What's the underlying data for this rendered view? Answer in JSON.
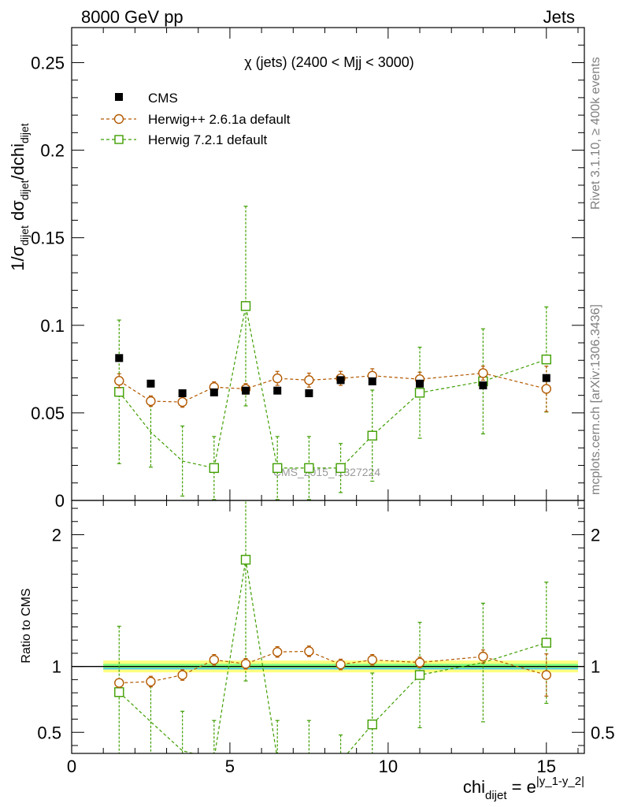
{
  "header": {
    "left_title": "8000 GeV pp",
    "right_title": "Jets"
  },
  "side_labels": {
    "rivet": "Rivet 3.1.10, ≥ 400k events",
    "mcplots": "mcplots.cern.ch [arXiv:1306.3436]"
  },
  "colors": {
    "cms": "#000000",
    "herwigpp": "#b35900",
    "herwig7": "#3f9e00",
    "band_outer": "#ffff80",
    "band_inner": "#80ff80",
    "band_center": "#40c0ff"
  },
  "chart_data": [
    {
      "type": "scatter",
      "panel": "main",
      "title": "χ (jets) (2400 < Mjj < 3000)",
      "watermark": "CMS_2015_I1327224",
      "ylabel": "1/σ_dijet dσ_dijet/dchi_dijet",
      "ylim": [
        0,
        0.27
      ],
      "xlim": [
        0,
        16.2
      ],
      "yticks": [
        0,
        0.05,
        0.1,
        0.15,
        0.2,
        0.25
      ],
      "ytick_labels": [
        "0",
        "0.05",
        "0.1",
        "0.15",
        "0.2",
        "0.25"
      ],
      "legend_position": "top-left",
      "series": [
        {
          "name": "CMS",
          "marker": "filled-square",
          "x": [
            1.5,
            2.5,
            3.5,
            4.5,
            5.5,
            6.5,
            7.5,
            8.5,
            9.5,
            11,
            13,
            15
          ],
          "y": [
            0.0813,
            0.0667,
            0.0612,
            0.0617,
            0.0627,
            0.0627,
            0.0612,
            0.0687,
            0.068,
            0.0667,
            0.0657,
            0.0699
          ],
          "yerr": [
            0.001,
            0.001,
            0.001,
            0.001,
            0.001,
            0.001,
            0.001,
            0.001,
            0.001,
            0.001,
            0.001,
            0.001
          ]
        },
        {
          "name": "Herwig++ 2.6.1a default",
          "marker": "open-circle",
          "x": [
            1.5,
            2.5,
            3.5,
            4.5,
            5.5,
            6.5,
            7.5,
            8.5,
            9.5,
            11,
            13,
            15
          ],
          "y": [
            0.0683,
            0.0567,
            0.0562,
            0.0647,
            0.0637,
            0.0697,
            0.0687,
            0.0697,
            0.0712,
            0.0692,
            0.0727,
            0.0637
          ],
          "yerr": [
            0.004,
            0.003,
            0.003,
            0.003,
            0.003,
            0.004,
            0.004,
            0.004,
            0.004,
            0.004,
            0.004,
            0.013
          ]
        },
        {
          "name": "Herwig 7.2.1 default",
          "marker": "open-square",
          "x": [
            1.5,
            2.5,
            3.5,
            4.5,
            5.5,
            6.5,
            7.5,
            8.5,
            9.5,
            11,
            13,
            15
          ],
          "y": [
            0.062,
            0.039,
            0.0225,
            0.0185,
            0.111,
            0.0185,
            0.0185,
            0.0185,
            0.037,
            0.0615,
            0.068,
            0.0805
          ],
          "yerr": [
            0.041,
            0.02,
            0.02,
            0.018,
            0.057,
            0.018,
            0.018,
            0.014,
            0.026,
            0.026,
            0.03,
            0.03
          ],
          "show_marker": [
            true,
            false,
            false,
            true,
            true,
            true,
            true,
            true,
            true,
            true,
            true,
            true
          ]
        }
      ]
    },
    {
      "type": "scatter",
      "panel": "ratio",
      "ylabel": "Ratio to CMS",
      "ylim": [
        0.34,
        2.26
      ],
      "xlim": [
        0,
        16.2
      ],
      "xlabel": "chi_dijet = e^|y_1-y_2|",
      "yticks": [
        0.5,
        1,
        2
      ],
      "ytick_labels": [
        "0.5",
        "1",
        "2"
      ],
      "xticks": [
        0,
        5,
        10,
        15
      ],
      "xtick_labels": [
        "0",
        "5",
        "10",
        "15"
      ],
      "band": {
        "x_range": [
          1,
          16
        ],
        "outer_halfwidth": 0.045,
        "inner_halfwidth": 0.02
      },
      "series": [
        {
          "name": "Herwig++ 2.6.1a default",
          "x": [
            1.5,
            2.5,
            3.5,
            4.5,
            5.5,
            6.5,
            7.5,
            8.5,
            9.5,
            11,
            13,
            15
          ],
          "y": [
            0.875,
            0.885,
            0.935,
            1.05,
            1.02,
            1.11,
            1.115,
            1.015,
            1.05,
            1.03,
            1.075,
            0.935
          ],
          "yerr": [
            0.03,
            0.04,
            0.04,
            0.04,
            0.04,
            0.04,
            0.04,
            0.04,
            0.04,
            0.04,
            0.05,
            0.16
          ]
        },
        {
          "name": "Herwig 7.2.1 default",
          "x": [
            1.5,
            2.5,
            3.5,
            4.5,
            5.5,
            6.5,
            7.5,
            8.5,
            9.5,
            11,
            13,
            15
          ],
          "y": [
            0.805,
            0.58,
            0.36,
            0.3,
            1.81,
            0.3,
            0.3,
            0.28,
            0.56,
            0.935,
            1.03,
            1.18
          ],
          "yerr": [
            0.5,
            0.3,
            0.3,
            0.29,
            0.92,
            0.29,
            0.29,
            0.2,
            0.39,
            0.4,
            0.45,
            0.46
          ],
          "show_marker": [
            true,
            false,
            false,
            false,
            true,
            false,
            false,
            false,
            true,
            true,
            false,
            true
          ]
        }
      ]
    }
  ]
}
